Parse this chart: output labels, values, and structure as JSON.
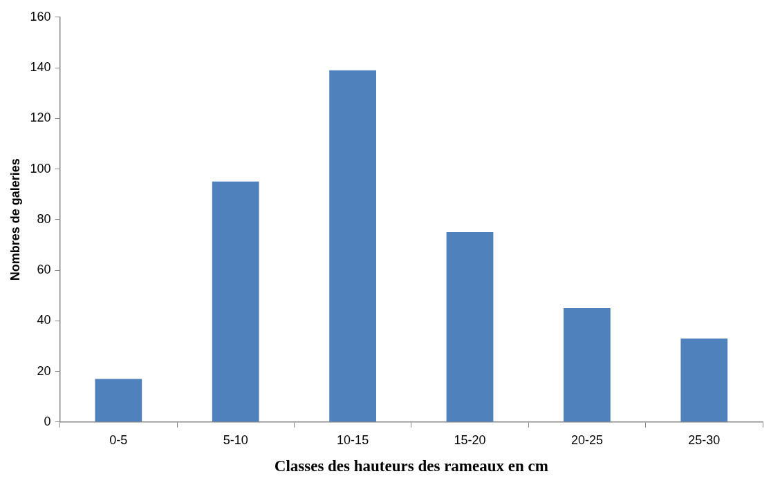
{
  "chart_data": {
    "type": "bar",
    "xlabel": "Classes des hauteurs des rameaux en cm",
    "ylabel": "Nombres de galeries",
    "categories": [
      "0-5",
      "5-10",
      "10-15",
      "15-20",
      "20-25",
      "25-30"
    ],
    "values": [
      17,
      95,
      139,
      75,
      45,
      33
    ],
    "color": "#4f81bd",
    "ylim": [
      0,
      160
    ],
    "yticks": [
      0,
      20,
      40,
      60,
      80,
      100,
      120,
      140,
      160
    ],
    "grid": false,
    "legend": false
  }
}
